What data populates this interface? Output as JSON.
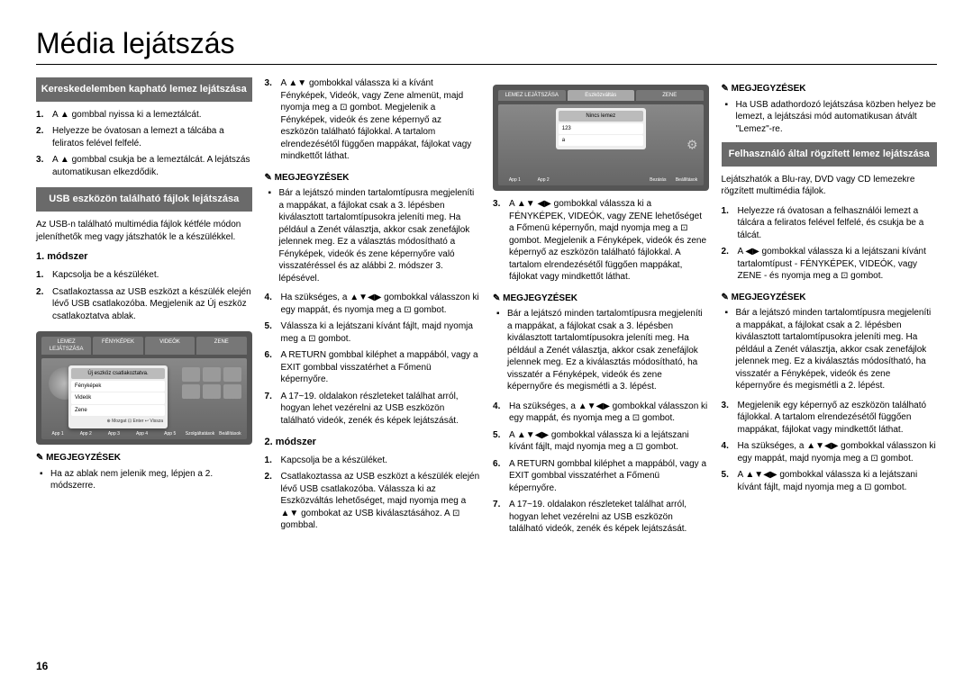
{
  "page": {
    "title": "Média lejátszás",
    "number": "16"
  },
  "col1": {
    "header1": "Kereskedelemben kapható lemez lejátszása",
    "list1": {
      "i1": "A ▲ gombbal nyissa ki a lemeztálcát.",
      "i2": "Helyezze be óvatosan a lemezt a tálcába a feliratos felével felfelé.",
      "i3": "A ▲ gombbal csukja be a lemeztálcát. A lejátszás automatikusan elkezdődik."
    },
    "header2": "USB eszközön található fájlok lejátszása",
    "para1": "Az USB-n található multimédia fájlok kétféle módon jeleníthetők meg vagy játszhatók le a készülékkel.",
    "subtitle1": "1. módszer",
    "list2": {
      "i1": "Kapcsolja be a készüléket.",
      "i2": "Csatlakoztassa az USB eszközt a készülék elején lévő USB csatlakozóba. Megjelenik az Új eszköz csatlakoztatva ablak."
    },
    "screenshot1": {
      "tabs": [
        "LEMEZ LEJÁTSZÁSA",
        "FÉNYKÉPEK",
        "VIDEÓK",
        "ZENE"
      ],
      "popup_title": "Új eszköz csatlakoztatva.",
      "items": [
        "Fényképek",
        "Videók",
        "Zene"
      ],
      "footer": "⊕ Mozgat  ⊡ Enter  ↩ Vissza",
      "apps": [
        "App 1",
        "App 2",
        "App 3",
        "App 4",
        "App 5",
        "Szolgáltatások",
        "Beállítások"
      ]
    },
    "note1_title": "MEGJEGYZÉSEK",
    "note1": "Ha az ablak nem jelenik meg, lépjen a 2. módszerre."
  },
  "col2": {
    "list1": {
      "i3": "A ▲▼ gombokkal válassza ki a kívánt Fényképek, Videók, vagy Zene almenüt, majd nyomja meg a ⊡ gombot. Megjelenik a Fényképek, videók és zene képernyő az eszközön található fájlokkal. A tartalom elrendezésétől függően mappákat, fájlokat vagy mindkettőt láthat."
    },
    "note1_title": "MEGJEGYZÉSEK",
    "note1": "Bár a lejátszó minden tartalomtípusra megjeleníti a mappákat, a fájlokat csak a 3. lépésben kiválasztott tartalomtípusokra jeleníti meg. Ha például a Zenét választja, akkor csak zenefájlok jelennek meg. Ez a választás módosítható a Fényképek, videók és zene képernyőre való visszatéréssel és az alábbi 2. módszer 3. lépésével.",
    "list2": {
      "i4": "Ha szükséges, a ▲▼◀▶ gombokkal válasszon ki egy mappát, és nyomja meg a ⊡ gombot.",
      "i5": "Válassza ki a lejátszani kívánt fájlt, majd nyomja meg a ⊡ gombot.",
      "i6": "A RETURN gombbal kiléphet a mappából, vagy a EXIT gombbal visszatérhet a Főmenü képernyőre.",
      "i7": "A 17~19. oldalakon részleteket találhat arról, hogyan lehet vezérelni az USB eszközön található videók, zenék és képek lejátszását."
    },
    "subtitle2": "2. módszer",
    "list3": {
      "i1": "Kapcsolja be a készüléket.",
      "i2": "Csatlakoztassa az USB eszközt a készülék elején lévő USB csatlakozóba. Válassza ki az Eszközváltás lehetőséget, majd nyomja meg a ▲▼ gombokat az USB kiválasztásához. A ⊡ gombbal."
    }
  },
  "col3": {
    "screenshot2": {
      "tabs": [
        "LEMEZ LEJÁTSZÁSA",
        "",
        "Eszközváltás",
        "",
        "ZENE"
      ],
      "popup_title": "Nincs lemez",
      "items": [
        "123",
        "a"
      ],
      "apps": [
        "App 1",
        "App 2",
        "",
        "",
        "",
        "Bezárás",
        "Beállítások"
      ]
    },
    "list1": {
      "i3": "A ▲▼ ◀▶ gombokkal válassza ki a FÉNYKÉPEK, VIDEÓK, vagy ZENE lehetőséget a Főmenü képernyőn, majd nyomja meg a ⊡ gombot. Megjelenik a Fényképek, videók és zene képernyő az eszközön található fájlokkal. A tartalom elrendezésétől függően mappákat, fájlokat vagy mindkettőt láthat."
    },
    "note1_title": "MEGJEGYZÉSEK",
    "note1": "Bár a lejátszó minden tartalomtípusra megjeleníti a mappákat, a fájlokat csak a 3. lépésben kiválasztott tartalomtípusokra jeleníti meg. Ha például a Zenét választja, akkor csak zenefájlok jelennek meg. Ez a kiválasztás módosítható, ha visszatér a Fényképek, videók és zene képernyőre és megismétli a 3. lépést.",
    "list2": {
      "i4": "Ha szükséges, a ▲▼◀▶ gombokkal válasszon ki egy mappát, és nyomja meg a ⊡ gombot.",
      "i5": "A ▲▼◀▶ gombokkal válassza ki a lejátszani kívánt fájlt, majd nyomja meg a ⊡ gombot.",
      "i6": "A RETURN gombbal kiléphet a mappából, vagy a EXIT gombbal visszatérhet a Főmenü képernyőre.",
      "i7": "A 17~19. oldalakon részleteket találhat arról, hogyan lehet vezérelni az USB eszközön található videók, zenék és képek lejátszását."
    }
  },
  "col4": {
    "note0_title": "MEGJEGYZÉSEK",
    "note0": "Ha USB adathordozó lejátszása közben helyez be lemezt, a lejátszási mód automatikusan átvált \"Lemez\"-re.",
    "header1": "Felhasználó által rögzített lemez lejátszása",
    "para1": "Lejátszhatók a Blu-ray, DVD vagy CD lemezekre rögzített multimédia fájlok.",
    "list1": {
      "i1": "Helyezze rá óvatosan a felhasználói lemezt a tálcára a feliratos felével felfelé, és csukja be a tálcát.",
      "i2": "A ◀▶ gombokkal válassza ki a lejátszani kívánt tartalomtípust - FÉNYKÉPEK, VIDEÓK, vagy ZENE - és nyomja meg a ⊡ gombot."
    },
    "note1_title": "MEGJEGYZÉSEK",
    "note1": "Bár a lejátszó minden tartalomtípusra megjeleníti a mappákat, a fájlokat csak a 2. lépésben kiválasztott tartalomtípusokra jeleníti meg. Ha például a Zenét választja, akkor csak zenefájlok jelennek meg. Ez a kiválasztás módosítható, ha visszatér a Fényképek, videók és zene képernyőre és megismétli a 2. lépést.",
    "list2": {
      "i3": "Megjelenik egy képernyő az eszközön található fájlokkal. A tartalom elrendezésétől függően mappákat, fájlokat vagy mindkettőt láthat.",
      "i4": "Ha szükséges, a ▲▼◀▶ gombokkal válasszon ki egy mappát, majd nyomja meg a ⊡ gombot.",
      "i5": "A ▲▼◀▶ gombokkal válassza ki a lejátszani kívánt fájlt, majd nyomja meg a ⊡ gombot."
    }
  }
}
